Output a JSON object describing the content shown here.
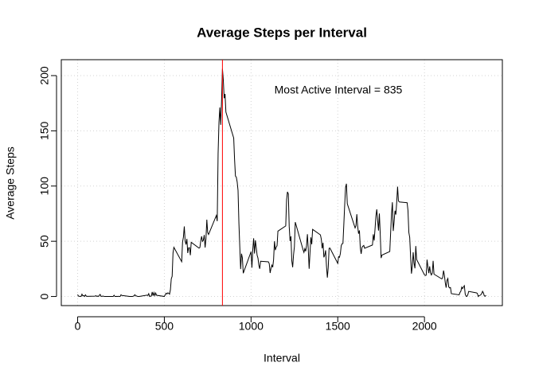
{
  "chart_data": {
    "type": "line",
    "title": "Average Steps per Interval",
    "x_label": "Interval",
    "y_label": "Average Steps",
    "annotation": "Most Active Interval = 835",
    "vline": {
      "x": 835,
      "color": "red"
    },
    "xlim": [
      -94.2,
      2449.2
    ],
    "xticks": [
      0,
      500,
      1000,
      1500,
      2000
    ],
    "ylim": [
      -8.25,
      214.42
    ],
    "yticks": [
      0,
      50,
      100,
      150,
      200
    ],
    "grid": true,
    "x": [
      0,
      5,
      10,
      15,
      20,
      25,
      30,
      35,
      40,
      45,
      50,
      55,
      100,
      105,
      110,
      115,
      120,
      125,
      130,
      135,
      140,
      145,
      150,
      155,
      200,
      205,
      210,
      215,
      220,
      225,
      230,
      235,
      240,
      245,
      250,
      255,
      300,
      305,
      310,
      315,
      320,
      325,
      330,
      335,
      340,
      345,
      350,
      355,
      400,
      405,
      410,
      415,
      420,
      425,
      430,
      435,
      440,
      445,
      450,
      455,
      500,
      505,
      510,
      515,
      520,
      525,
      530,
      535,
      540,
      545,
      550,
      555,
      600,
      605,
      610,
      615,
      620,
      625,
      630,
      635,
      640,
      645,
      650,
      655,
      700,
      705,
      710,
      715,
      720,
      725,
      730,
      735,
      740,
      745,
      750,
      755,
      800,
      805,
      810,
      815,
      820,
      825,
      830,
      835,
      840,
      845,
      850,
      855,
      900,
      905,
      910,
      915,
      920,
      925,
      930,
      935,
      940,
      945,
      950,
      955,
      1000,
      1005,
      1010,
      1015,
      1020,
      1025,
      1030,
      1035,
      1040,
      1045,
      1050,
      1055,
      1100,
      1105,
      1110,
      1115,
      1120,
      1125,
      1130,
      1135,
      1140,
      1145,
      1150,
      1155,
      1200,
      1205,
      1210,
      1215,
      1220,
      1225,
      1230,
      1235,
      1240,
      1245,
      1250,
      1255,
      1300,
      1305,
      1310,
      1315,
      1320,
      1325,
      1330,
      1335,
      1340,
      1345,
      1350,
      1355,
      1400,
      1405,
      1410,
      1415,
      1420,
      1425,
      1430,
      1435,
      1440,
      1445,
      1450,
      1455,
      1500,
      1505,
      1510,
      1515,
      1520,
      1525,
      1530,
      1535,
      1540,
      1545,
      1550,
      1555,
      1600,
      1605,
      1610,
      1615,
      1620,
      1625,
      1630,
      1635,
      1640,
      1645,
      1650,
      1655,
      1700,
      1705,
      1710,
      1715,
      1720,
      1725,
      1730,
      1735,
      1740,
      1745,
      1750,
      1755,
      1800,
      1805,
      1810,
      1815,
      1820,
      1825,
      1830,
      1835,
      1840,
      1845,
      1850,
      1855,
      1900,
      1905,
      1910,
      1915,
      1920,
      1925,
      1930,
      1935,
      1940,
      1945,
      1950,
      1955,
      2000,
      2005,
      2010,
      2015,
      2020,
      2025,
      2030,
      2035,
      2040,
      2045,
      2050,
      2055,
      2100,
      2105,
      2110,
      2115,
      2120,
      2125,
      2130,
      2135,
      2140,
      2145,
      2150,
      2155,
      2200,
      2205,
      2210,
      2215,
      2220,
      2225,
      2230,
      2235,
      2240,
      2245,
      2250,
      2255,
      2300,
      2305,
      2310,
      2315,
      2320,
      2325,
      2330,
      2335,
      2340,
      2345,
      2350,
      2355
    ],
    "series": [
      {
        "color": "#000000",
        "values": [
          1.72,
          0.34,
          0.13,
          0.15,
          0.08,
          2.09,
          0.53,
          0.87,
          0,
          1.47,
          0.3,
          0.13,
          0.32,
          0.68,
          0.15,
          0.34,
          0,
          1.11,
          1.83,
          0.17,
          0.17,
          0.38,
          0.26,
          0,
          0,
          0,
          1.13,
          0,
          0,
          0.13,
          0,
          0.23,
          0,
          0,
          1.55,
          0.94,
          0,
          0,
          0,
          0,
          0.21,
          0.62,
          1.62,
          0.58,
          0.49,
          0.08,
          0,
          0,
          1.19,
          0.94,
          2.57,
          0,
          0.34,
          0.36,
          4.11,
          0.66,
          3.49,
          0.83,
          3.11,
          1.11,
          0,
          1.57,
          3,
          2.25,
          3.32,
          2.96,
          2.09,
          6.06,
          16.02,
          18.34,
          39.45,
          44.49,
          31.49,
          49.26,
          53.77,
          63.45,
          49.96,
          47.08,
          52.15,
          39.34,
          44.02,
          44.17,
          37.36,
          49.04,
          43.81,
          44.38,
          50.51,
          54.51,
          49.92,
          50.98,
          55.68,
          44.32,
          52.26,
          69.55,
          57.85,
          56.15,
          73.38,
          68.21,
          129.43,
          157.53,
          171.15,
          155.4,
          177.3,
          206.17,
          195.92,
          179.57,
          183.4,
          167.02,
          143.45,
          124.04,
          109.11,
          108.11,
          103.72,
          95.97,
          66.21,
          45.23,
          24.79,
          38.75,
          34.98,
          21.06,
          40.57,
          26.1,
          42.4,
          52.7,
          38.9,
          50.8,
          44.3,
          37.4,
          34.7,
          28.3,
          25.1,
          31.9,
          31.4,
          29.7,
          21.3,
          25.5,
          28.4,
          26.5,
          33.4,
          50,
          42,
          44.6,
          46,
          59.2,
          63.9,
          87.7,
          94.8,
          92.8,
          63.4,
          50.2,
          54.5,
          32.4,
          26.5,
          37.7,
          45.1,
          67.3,
          42.3,
          39.9,
          43.3,
          40.98,
          46.2,
          56.4,
          42.8,
          25.1,
          39.96,
          53.5,
          47.3,
          60.8,
          55.8,
          51.96,
          43.6,
          48.7,
          35.5,
          37.5,
          41.8,
          27.5,
          17.1,
          26.1,
          43.6,
          43.8,
          30,
          36.1,
          35.5,
          38.8,
          45.96,
          47.75,
          48.1,
          65.3,
          82.9,
          98.7,
          102.1,
          83.96,
          62.1,
          64.1,
          74.5,
          63.2,
          56.9,
          59.8,
          43.9,
          38.6,
          44.7,
          45.5,
          46.2,
          43.7,
          46.6,
          56.3,
          50.7,
          61.2,
          72.7,
          78.9,
          68.9,
          59.7,
          75.1,
          56.5,
          34.8,
          37.5,
          40.7,
          58,
          74.7,
          85.3,
          59.3,
          67.8,
          77.7,
          74.2,
          85.3,
          99.5,
          86.6,
          85.6,
          84.9,
          77.8,
          58,
          53.4,
          36.3,
          20.7,
          27.4,
          40,
          30.2,
          25.5,
          45.7,
          33.5,
          19.6,
          19,
          19.3,
          33.3,
          26.8,
          21.2,
          27.3,
          21.3,
          19.5,
          21.3,
          32.3,
          20.2,
          15.9,
          17.2,
          23.5,
          19.2,
          12.5,
          8,
          14.7,
          16.3,
          8.7,
          7.8,
          8.1,
          2.6,
          1.5,
          3.7,
          4.8,
          8.5,
          7.1,
          8.7,
          9.8,
          2.2,
          0.3,
          0.1,
          1.6,
          4.6,
          3.3,
          2.8,
          0,
          0.8,
          0.96,
          1.6,
          2.6,
          4.7,
          3.3,
          0.6,
          0.2,
          1.1
        ]
      }
    ]
  }
}
